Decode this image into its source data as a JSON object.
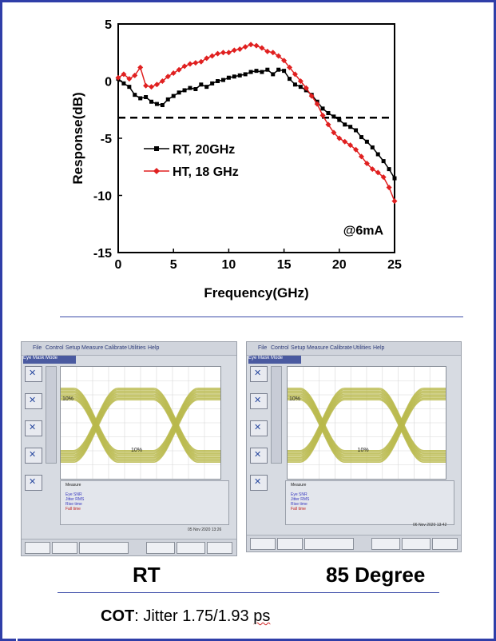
{
  "chart_data": {
    "type": "line",
    "xlabel": "Frequency(GHz)",
    "ylabel": "Response(dB)",
    "xlim": [
      0,
      25
    ],
    "ylim": [
      -15,
      5
    ],
    "xticks": [
      0,
      5,
      10,
      15,
      20,
      25
    ],
    "yticks": [
      5,
      0,
      -5,
      -10,
      -15
    ],
    "reference_line_db": -3.2,
    "annotation": "@6mA",
    "legend_position": "middle-left",
    "series": [
      {
        "name": "RT, 20GHz",
        "color": "#000000",
        "marker": "square",
        "x": [
          0,
          0.5,
          1,
          1.5,
          2,
          2.5,
          3,
          3.5,
          4,
          4.5,
          5,
          5.5,
          6,
          6.5,
          7,
          7.5,
          8,
          8.5,
          9,
          9.5,
          10,
          10.5,
          11,
          11.5,
          12,
          12.5,
          13,
          13.5,
          14,
          14.5,
          15,
          15.5,
          16,
          16.5,
          17,
          17.5,
          18,
          18.5,
          19,
          19.5,
          20,
          20.5,
          21,
          21.5,
          22,
          22.5,
          23,
          23.5,
          24,
          24.5,
          25
        ],
        "y": [
          0.2,
          -0.2,
          -0.5,
          -1.2,
          -1.5,
          -1.4,
          -1.8,
          -2.0,
          -2.1,
          -1.6,
          -1.3,
          -1.0,
          -0.8,
          -0.6,
          -0.7,
          -0.3,
          -0.5,
          -0.2,
          0.0,
          0.1,
          0.3,
          0.4,
          0.5,
          0.6,
          0.8,
          0.9,
          0.8,
          1.0,
          0.6,
          1.0,
          0.9,
          0.2,
          -0.3,
          -0.5,
          -0.8,
          -1.2,
          -1.8,
          -2.4,
          -2.8,
          -3.1,
          -3.4,
          -3.8,
          -4.0,
          -4.3,
          -4.9,
          -5.3,
          -5.8,
          -6.4,
          -7.0,
          -7.7,
          -8.5
        ]
      },
      {
        "name": "HT, 18 GHz",
        "color": "#e02020",
        "marker": "diamond",
        "x": [
          0,
          0.5,
          1,
          1.5,
          2,
          2.5,
          3,
          3.5,
          4,
          4.5,
          5,
          5.5,
          6,
          6.5,
          7,
          7.5,
          8,
          8.5,
          9,
          9.5,
          10,
          10.5,
          11,
          11.5,
          12,
          12.5,
          13,
          13.5,
          14,
          14.5,
          15,
          15.5,
          16,
          16.5,
          17,
          17.5,
          18,
          18.5,
          19,
          19.5,
          20,
          20.5,
          21,
          21.5,
          22,
          22.5,
          23,
          23.5,
          24,
          24.5,
          25
        ],
        "y": [
          0.3,
          0.6,
          0.2,
          0.5,
          1.2,
          -0.4,
          -0.5,
          -0.3,
          0.0,
          0.4,
          0.7,
          1.0,
          1.3,
          1.5,
          1.6,
          1.7,
          2.0,
          2.2,
          2.4,
          2.5,
          2.5,
          2.7,
          2.8,
          3.0,
          3.2,
          3.1,
          2.9,
          2.6,
          2.5,
          2.2,
          1.8,
          1.2,
          0.6,
          0.0,
          -0.6,
          -1.3,
          -2.0,
          -3.0,
          -3.8,
          -4.5,
          -5.0,
          -5.3,
          -5.6,
          -6.0,
          -6.6,
          -7.2,
          -7.7,
          -8.0,
          -8.4,
          -9.3,
          -10.5
        ]
      }
    ]
  },
  "eye_diagrams": [
    {
      "caption": "RT",
      "menu": [
        "File",
        "Control",
        "Setup",
        "Measure",
        "Calibrate",
        "Utilities",
        "Help"
      ],
      "tab_label": "Eye Mask Mode",
      "marker_a": "10%",
      "marker_b": "10%",
      "measure_title": "Measure",
      "rows": [
        "Eye SNR",
        "Jitter RMS",
        "Rise time",
        "Fall time"
      ],
      "date": "05 Nov 2020 13:26"
    },
    {
      "caption": "85 Degree",
      "menu": [
        "File",
        "Control",
        "Setup",
        "Measure",
        "Calibrate",
        "Utilities",
        "Help"
      ],
      "tab_label": "Eye Mask Mode",
      "marker_a": "10%",
      "marker_b": "10%",
      "measure_title": "Measure",
      "rows": [
        "Eye SNR",
        "Jitter RMS",
        "Rise time",
        "Fall time"
      ],
      "date": "06 Nov 2020 13:42"
    }
  ],
  "footer": {
    "cot_label": "COT",
    "cot_text": ": Jitter 1.75/1.93 ",
    "cot_unit": "ps"
  }
}
